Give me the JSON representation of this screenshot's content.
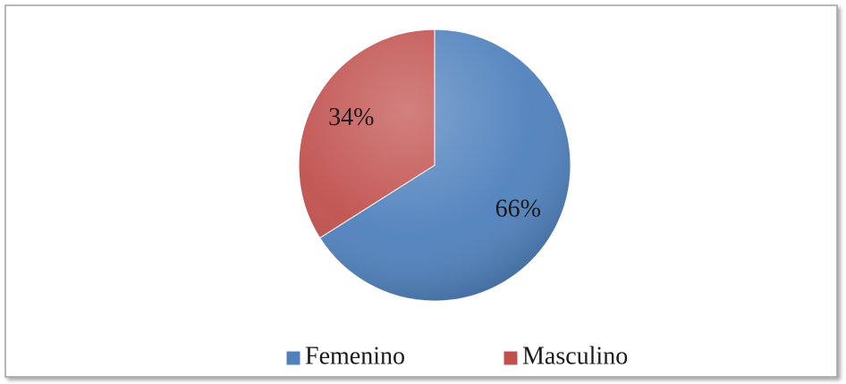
{
  "chart_data": {
    "type": "pie",
    "categories": [
      "Femenino",
      "Masculino"
    ],
    "values": [
      66,
      34
    ],
    "value_labels": [
      "66%",
      "34%"
    ],
    "colors": [
      "#4f81bd",
      "#c0504d"
    ],
    "legend": "bottom"
  }
}
